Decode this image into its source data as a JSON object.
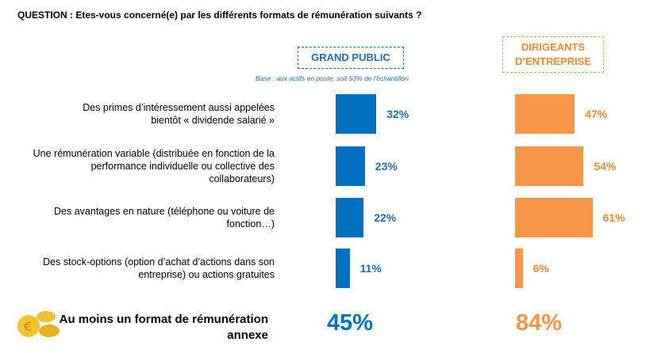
{
  "question": "QUESTION : Etes-vous concerné(e) par les différents formats de rémunération suivants ?",
  "base": "Base : aux actifs en poste, soit 53% de l'échantillon",
  "chart_data": {
    "type": "bar",
    "categories": [
      "Des primes d’intéressement aussi appelées bientôt « dividende salarié »",
      "Une rémunération variable (distribuée en fonction de la performance individuelle ou collective des collaborateurs)",
      "Des avantages en nature (téléphone ou voiture de fonction…)",
      "Des stock-options (option d’achat d’actions dans son entreprise) ou actions gratuites"
    ],
    "series": [
      {
        "name": "GRAND PUBLIC",
        "color": "#0070c0",
        "values": [
          32,
          23,
          22,
          11
        ],
        "labels": [
          "32%",
          "23%",
          "22%",
          "11%"
        ]
      },
      {
        "name": "DIRIGEANTS D’ENTREPRISE",
        "color": "#f79646",
        "values": [
          47,
          54,
          61,
          6
        ],
        "labels": [
          "47%",
          "54%",
          "61%",
          "6%"
        ]
      }
    ],
    "unit": "%"
  },
  "summary": {
    "label": "Au moins un format de rémunération annexe",
    "icon": "coins-euro-icon",
    "values": [
      "45%",
      "84%"
    ]
  }
}
